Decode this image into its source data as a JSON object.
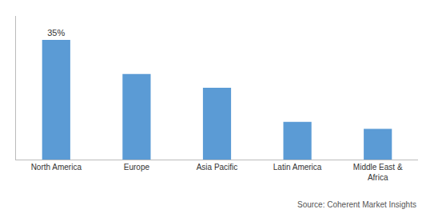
{
  "chart_data": {
    "type": "bar",
    "categories": [
      "North America",
      "Europe",
      "Asia Pacific",
      "Latin America",
      "Middle East &\nAfrica"
    ],
    "values": [
      35,
      25,
      21,
      11,
      9
    ],
    "color": "#5b9bd5",
    "data_labels": true,
    "value_labels": [
      "35%",
      null,
      null,
      null,
      null
    ],
    "annotations": [
      "Source: Coherent Market Insights"
    ],
    "ylim": [
      0,
      42
    ],
    "grid": false,
    "tick_labels": "x"
  }
}
